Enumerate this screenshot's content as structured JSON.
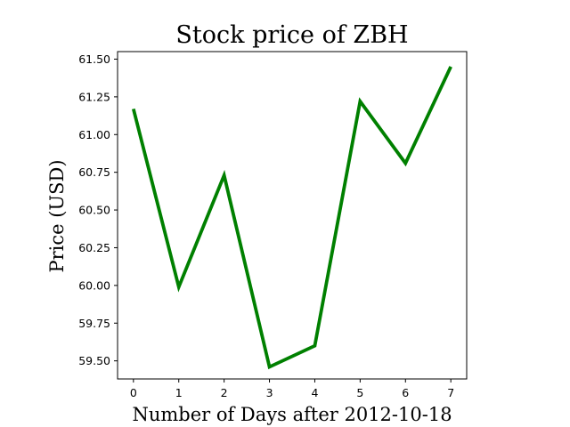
{
  "chart_data": {
    "type": "line",
    "title": "Stock price of ZBH",
    "xlabel": "Number of Days after 2012-10-18",
    "ylabel": "Price (USD)",
    "x": [
      0,
      1,
      2,
      3,
      4,
      5,
      6,
      7
    ],
    "x_ticks": [
      "0",
      "1",
      "2",
      "3",
      "4",
      "5",
      "6",
      "7"
    ],
    "y_ticks": [
      "59.50",
      "59.75",
      "60.00",
      "60.25",
      "60.50",
      "60.75",
      "61.00",
      "61.25",
      "61.50"
    ],
    "y_tick_values": [
      59.5,
      59.75,
      60.0,
      60.25,
      60.5,
      60.75,
      61.0,
      61.25,
      61.5
    ],
    "xlim": [
      -0.35,
      7.35
    ],
    "ylim": [
      59.38,
      61.55
    ],
    "grid": false,
    "series": [
      {
        "color": "#008000",
        "values": [
          61.17,
          59.99,
          60.73,
          59.46,
          59.6,
          61.22,
          60.81,
          61.45
        ]
      }
    ]
  }
}
